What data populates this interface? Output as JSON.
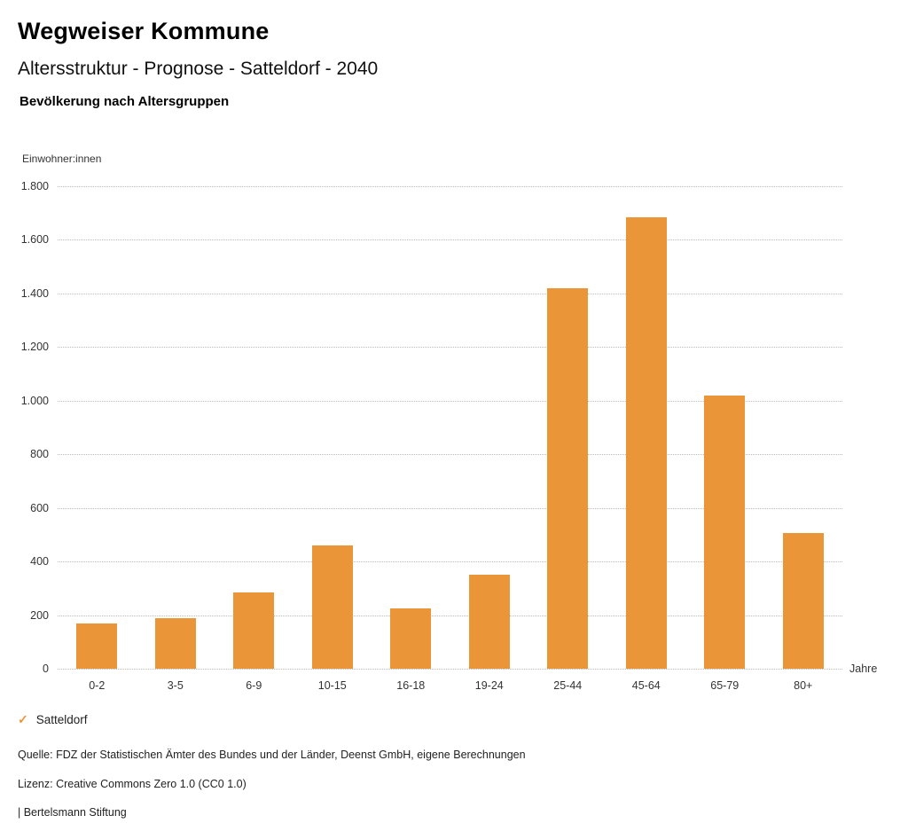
{
  "header": {
    "title": "Wegweiser Kommune",
    "subtitle": "Altersstruktur - Prognose - Satteldorf - 2040",
    "section": "Bevölkerung nach Altersgruppen"
  },
  "chart_data": {
    "type": "bar",
    "title": "Bevölkerung nach Altersgruppen",
    "ylabel": "Einwohner:innen",
    "xlabel": "Jahre",
    "categories": [
      "0-2",
      "3-5",
      "6-9",
      "10-15",
      "16-18",
      "19-24",
      "25-44",
      "45-64",
      "65-79",
      "80+"
    ],
    "values": [
      170,
      190,
      285,
      460,
      225,
      350,
      1420,
      1685,
      1020,
      505
    ],
    "series_name": "Satteldorf",
    "ylim": [
      0,
      1800
    ],
    "yticks": [
      {
        "value": 0,
        "label": "0"
      },
      {
        "value": 200,
        "label": "200"
      },
      {
        "value": 400,
        "label": "400"
      },
      {
        "value": 600,
        "label": "600"
      },
      {
        "value": 800,
        "label": "800"
      },
      {
        "value": 1000,
        "label": "1.000"
      },
      {
        "value": 1200,
        "label": "1.200"
      },
      {
        "value": 1400,
        "label": "1.400"
      },
      {
        "value": 1600,
        "label": "1.600"
      },
      {
        "value": 1800,
        "label": "1.800"
      }
    ],
    "grid": "horizontal dotted",
    "legend_position": "bottom-left",
    "bar_color": "#EA9538"
  },
  "legend": {
    "label": "Satteldorf",
    "check_icon": "✓",
    "check_color": "#EA9538"
  },
  "footer": {
    "source": "Quelle: FDZ der Statistischen Ämter des Bundes und der Länder, Deenst GmbH, eigene Berechnungen",
    "license": "Lizenz: Creative Commons Zero 1.0 (CC0 1.0)",
    "attribution": "| Bertelsmann Stiftung"
  }
}
